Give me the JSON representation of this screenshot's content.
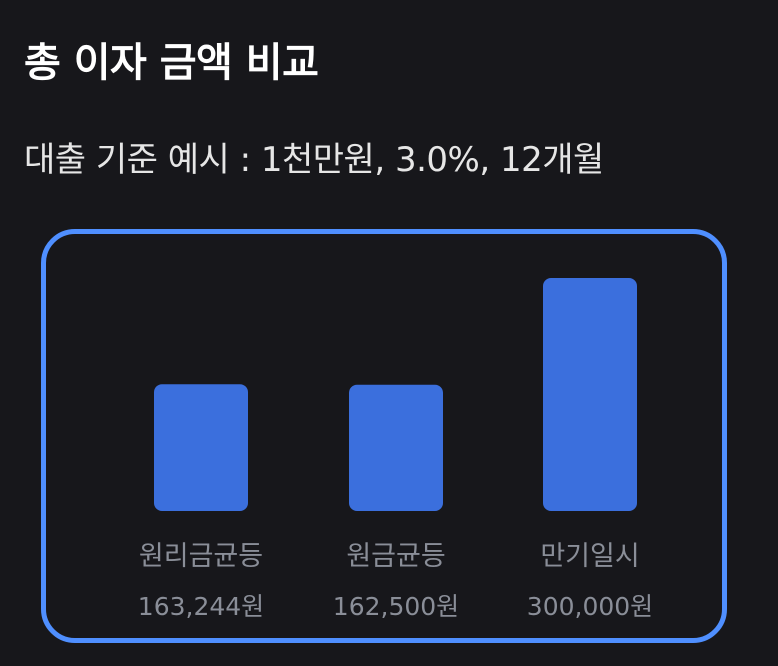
{
  "header": {
    "title": "총 이자 금액 비교",
    "subtitle": "대출 기준 예시 : 1천만원, 3.0%, 12개월"
  },
  "colors": {
    "background": "#17171b",
    "bar": "#3b6fdd",
    "border": "#4f8fff",
    "label": "#8a8e98"
  },
  "chart_data": {
    "type": "bar",
    "title": "총 이자 금액 비교",
    "subtitle": "대출 기준 예시 : 1천만원, 3.0%, 12개월",
    "categories": [
      "원리금균등",
      "원금균등",
      "만기일시"
    ],
    "values": [
      163244,
      162500,
      300000
    ],
    "value_labels": [
      "163,244원",
      "162,500원",
      "300,000원"
    ],
    "xlabel": "",
    "ylabel": "",
    "grid": false,
    "legend": "none"
  }
}
